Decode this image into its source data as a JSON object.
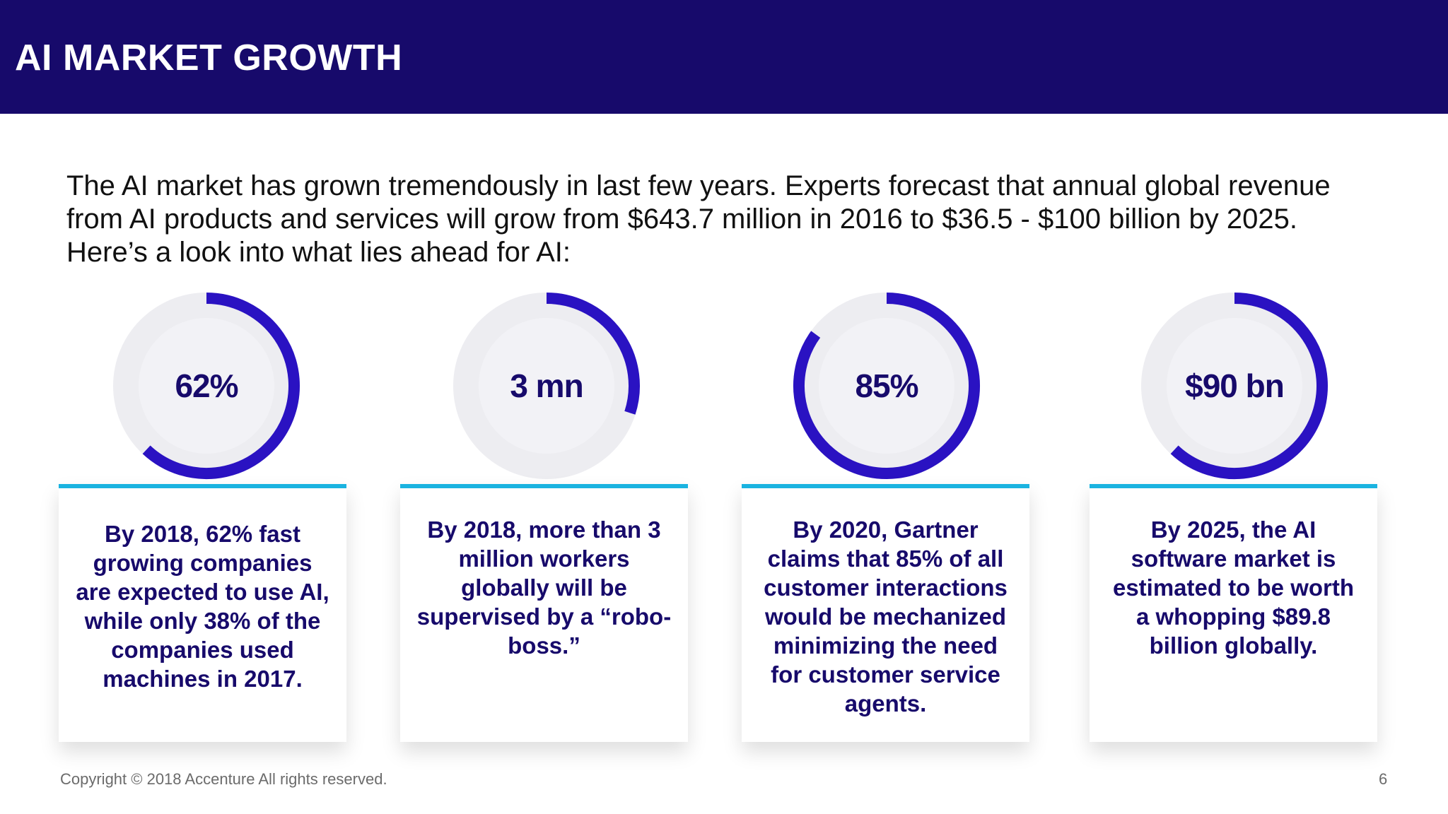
{
  "header": {
    "title": "AI MARKET GROWTH"
  },
  "intro": "The AI market has grown tremendously in last few years. Experts forecast that annual global revenue from AI products and services will grow from $643.7 million in 2016 to $36.5 - $100 billion by 2025. Here’s a look into what lies ahead for AI:",
  "stats": [
    {
      "value": "62%",
      "fill_fraction": 0.62,
      "text": "By 2018, 62% fast growing companies are expected to use AI, while only 38% of the companies used machines in 2017."
    },
    {
      "value": "3 mn",
      "fill_fraction": 0.3,
      "text": "By 2018, more than 3 million workers globally will be supervised by a “robo-boss.”"
    },
    {
      "value": "85%",
      "fill_fraction": 0.85,
      "text": "By 2020, Gartner claims that 85% of all customer interactions would be mechanized minimizing the need for customer service agents."
    },
    {
      "value": "$90 bn",
      "fill_fraction": 0.62,
      "text": "By 2025, the AI software market is estimated to be worth a whopping $89.8 billion globally."
    }
  ],
  "colors": {
    "header_bg": "#170a6b",
    "ring_fill": "#2a12c2",
    "ring_track": "#ededf1",
    "card_accent": "#1ab3e0",
    "stat_text": "#170a6b"
  },
  "footer": {
    "copyright": "Copyright © 2018 Accenture  All rights reserved.",
    "page": "6"
  }
}
